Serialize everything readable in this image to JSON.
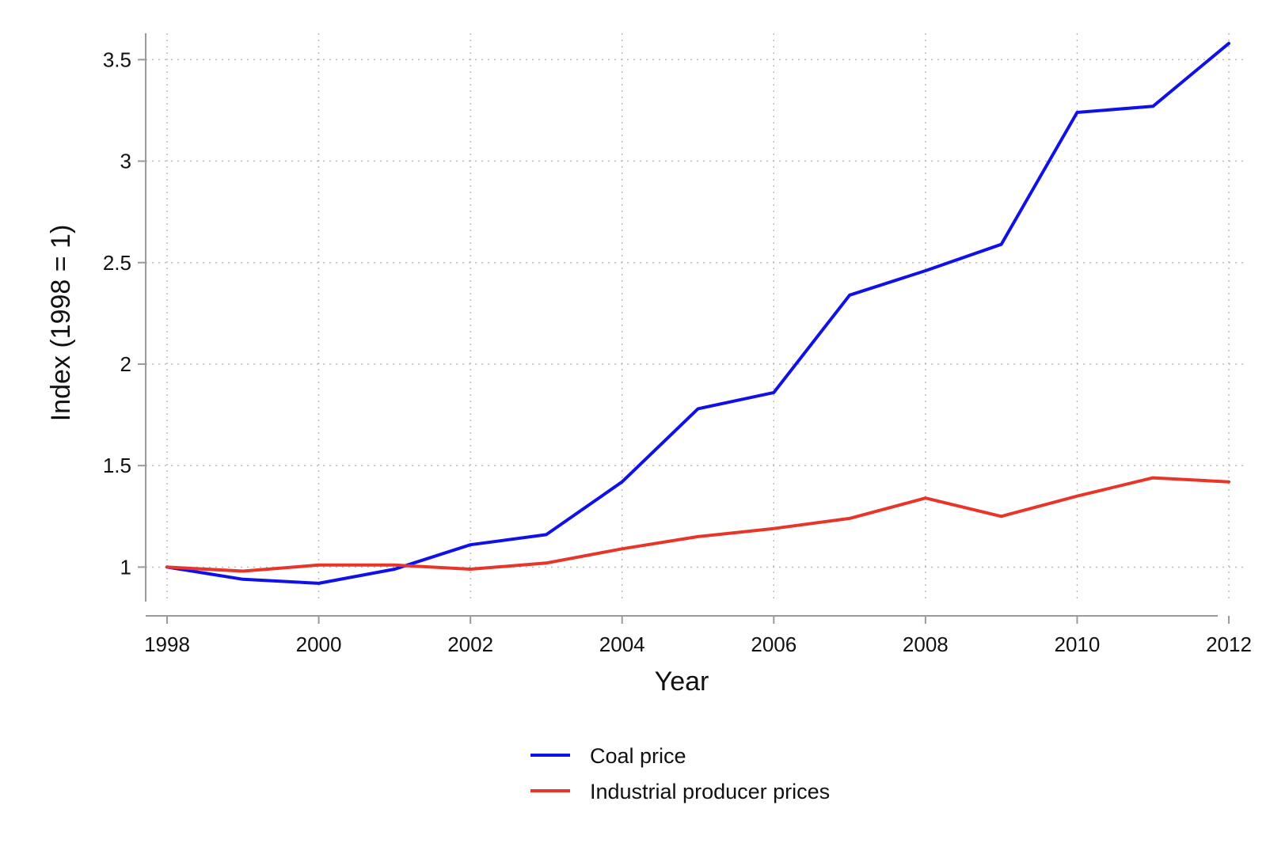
{
  "chart_data": {
    "type": "line",
    "title": "",
    "xlabel": "Year",
    "ylabel": "Index (1998 = 1)",
    "x": [
      1998,
      1999,
      2000,
      2001,
      2002,
      2003,
      2004,
      2005,
      2006,
      2007,
      2008,
      2009,
      2010,
      2011,
      2012
    ],
    "xticks": [
      "1998",
      "2000",
      "2002",
      "2004",
      "2006",
      "2008",
      "2010",
      "2012"
    ],
    "yticks": [
      "1",
      "1.5",
      "2",
      "2.5",
      "3",
      "3.5"
    ],
    "xlim": [
      1998,
      2012
    ],
    "ylim": [
      0.83,
      3.63
    ],
    "grid": true,
    "legend_placement": "bottom-center",
    "series": [
      {
        "name": "Coal price",
        "color": "#1010e8",
        "values": [
          1.0,
          0.94,
          0.92,
          0.99,
          1.11,
          1.16,
          1.42,
          1.78,
          1.86,
          2.34,
          2.46,
          2.59,
          3.24,
          3.27,
          3.58
        ]
      },
      {
        "name": "Industrial producer prices",
        "color": "#e8352a",
        "values": [
          1.0,
          0.98,
          1.01,
          1.01,
          0.99,
          1.02,
          1.09,
          1.15,
          1.19,
          1.24,
          1.34,
          1.25,
          1.35,
          1.44,
          1.42
        ]
      }
    ]
  }
}
